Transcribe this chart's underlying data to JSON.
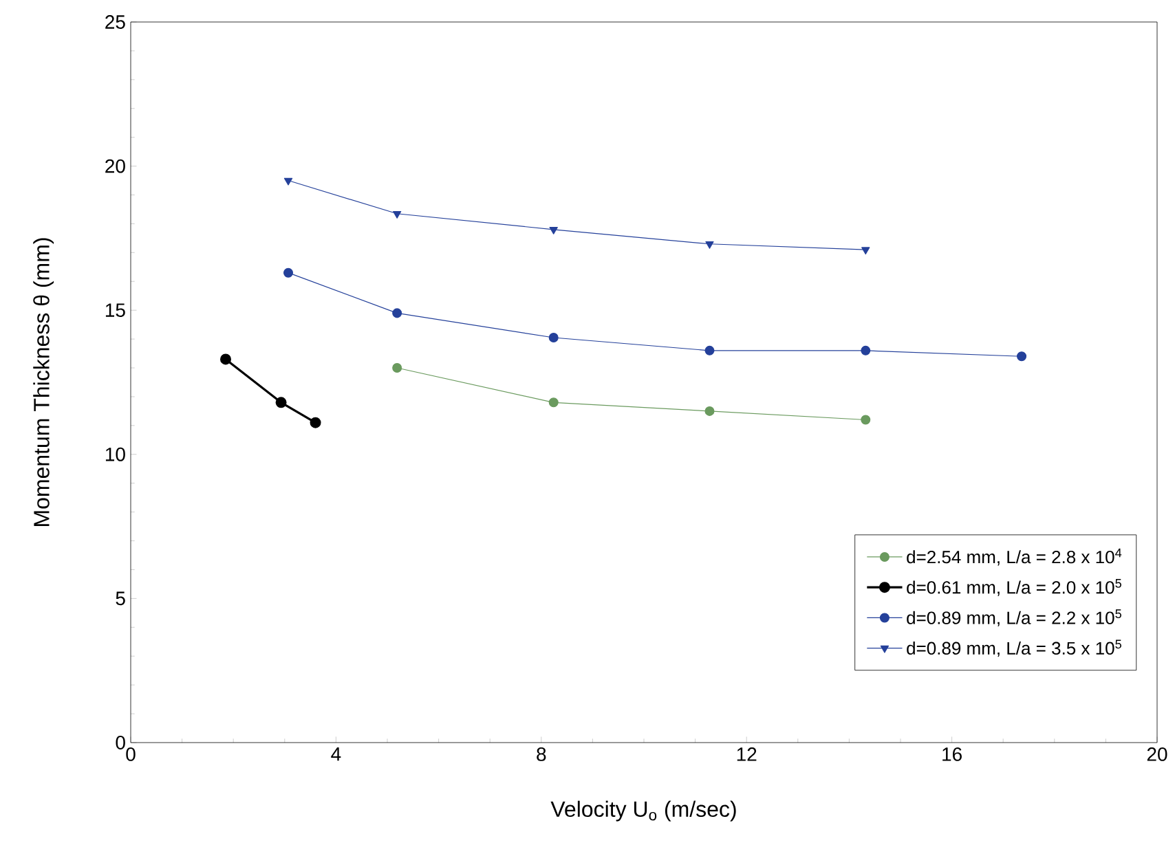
{
  "chart_data": {
    "type": "line",
    "xlabel": "Velocity U$_{o}$ (m/sec)",
    "ylabel": "Momentum Thickness θ (mm)",
    "xlim": [
      0,
      20
    ],
    "xticks": [
      0,
      4,
      8,
      12,
      16,
      20
    ],
    "ylim": [
      0,
      25
    ],
    "yticks": [
      0,
      5,
      10,
      15,
      20,
      25
    ],
    "legend": "bottom right",
    "grid": false,
    "series": [
      {
        "name": "d=2.54 mm, L/a = 2.8 x 10$^{4}$",
        "color": "#6a9a5e",
        "marker": "circle",
        "x": [
          5.19,
          8.24,
          11.28,
          14.32
        ],
        "values": [
          13.0,
          11.8,
          11.5,
          11.2
        ]
      },
      {
        "name": "d=0.61 mm, L/a = 2.0 x 10$^{5}$",
        "color": "#000000",
        "marker": "circle",
        "x": [
          1.85,
          2.93,
          3.6
        ],
        "values": [
          13.3,
          11.8,
          11.1
        ]
      },
      {
        "name": "d=0.89 mm, L/a = 2.2 x 10$^{5}$",
        "color": "#24409a",
        "marker": "circle",
        "x": [
          3.07,
          5.19,
          8.24,
          11.28,
          14.32,
          17.36
        ],
        "values": [
          16.3,
          14.9,
          14.05,
          13.6,
          13.6,
          13.4
        ]
      },
      {
        "name": "d=0.89 mm, L/a = 3.5 x 10$^{5}$",
        "color": "#24409a",
        "marker": "triangle",
        "x": [
          3.07,
          5.19,
          8.24,
          11.28,
          14.32
        ],
        "values": [
          19.5,
          18.35,
          17.8,
          17.3,
          17.1
        ]
      }
    ]
  }
}
